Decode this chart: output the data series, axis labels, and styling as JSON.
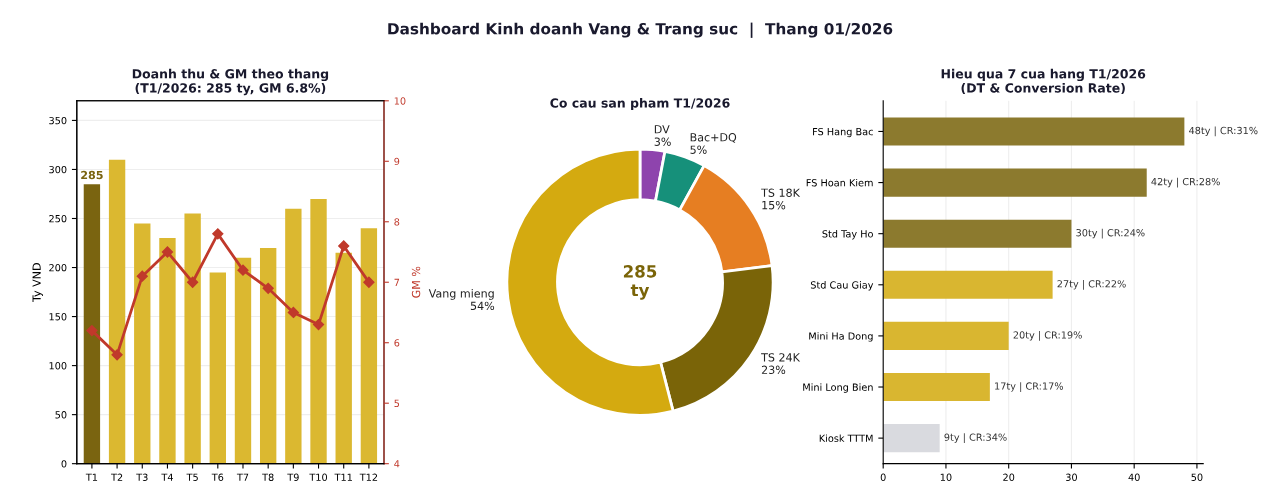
{
  "chart_data": [
    {
      "type": "bar",
      "title": "Doanh thu & GM theo thang\n(T1/2026: 285 ty, GM 6.8%)",
      "ylabel": "Ty VND",
      "y2label": "GM %",
      "annotations": [
        "Dashboard Kinh doanh Vang & Trang suc  |  Thang 01/2026"
      ],
      "categories": [
        "T1",
        "T2",
        "T3",
        "T4",
        "T5",
        "T6",
        "T7",
        "T8",
        "T9",
        "T10",
        "T11",
        "T12"
      ],
      "series": [
        {
          "type": "bar",
          "colors": [
            "#7a6410",
            "#dbb830",
            "#dbb830",
            "#dbb830",
            "#dbb830",
            "#dbb830",
            "#dbb830",
            "#dbb830",
            "#dbb830",
            "#dbb830",
            "#dbb830",
            "#dbb830"
          ],
          "values": [
            285,
            310,
            245,
            230,
            255,
            195,
            210,
            220,
            260,
            270,
            215,
            240
          ],
          "value_labels": [
            "285",
            null,
            null,
            null,
            null,
            null,
            null,
            null,
            null,
            null,
            null,
            null
          ]
        },
        {
          "type": "line",
          "axis": "y2",
          "color": "#c0392b",
          "marker": "diamond",
          "values": [
            6.2,
            5.8,
            7.1,
            7.5,
            7.0,
            7.8,
            7.2,
            6.9,
            6.5,
            6.3,
            7.6,
            7.0
          ]
        }
      ],
      "ylim": [
        0,
        370
      ],
      "yticks": [
        0,
        50,
        100,
        150,
        200,
        250,
        300,
        350
      ],
      "y2lim": [
        4,
        10
      ],
      "y2ticks": [
        4,
        5,
        6,
        7,
        8,
        9,
        10
      ],
      "grid": "y"
    },
    {
      "type": "donut",
      "title": "Co cau san pham T1/2026",
      "annotations": [
        "285\nty"
      ],
      "categories": [
        "DV\n3%",
        "Bac+DQ\n5%",
        "TS 18K\n15%",
        "TS 24K\n23%",
        "Vang mieng\n54%"
      ],
      "values": [
        3,
        5,
        15,
        23,
        54
      ],
      "colors": [
        "#8e44ad",
        "#16907a",
        "#e67e22",
        "#7a6408",
        "#d4aa10"
      ]
    },
    {
      "type": "bar",
      "orientation": "horizontal",
      "title": "Hieu qua 7 cua hang T1/2026\n(DT & Conversion Rate)",
      "categories": [
        "FS Hang Bac",
        "FS Hoan Kiem",
        "Std Tay Ho",
        "Std Cau Giay",
        "Mini Ha Dong",
        "Mini Long Bien",
        "Kiosk TTTM"
      ],
      "values": [
        48,
        42,
        30,
        27,
        20,
        17,
        9
      ],
      "colors": [
        "#8c7a2e",
        "#8c7a2e",
        "#8c7a2e",
        "#d9b630",
        "#d9b630",
        "#d9b630",
        "#d9dadf"
      ],
      "value_labels": [
        "48ty | CR:31%",
        "42ty | CR:28%",
        "30ty | CR:24%",
        "27ty | CR:22%",
        "20ty | CR:19%",
        "17ty | CR:17%",
        "9ty | CR:34%"
      ],
      "xlim": [
        0,
        51
      ],
      "xticks": [
        0,
        10,
        20,
        30,
        40,
        50
      ],
      "grid": "x"
    }
  ]
}
